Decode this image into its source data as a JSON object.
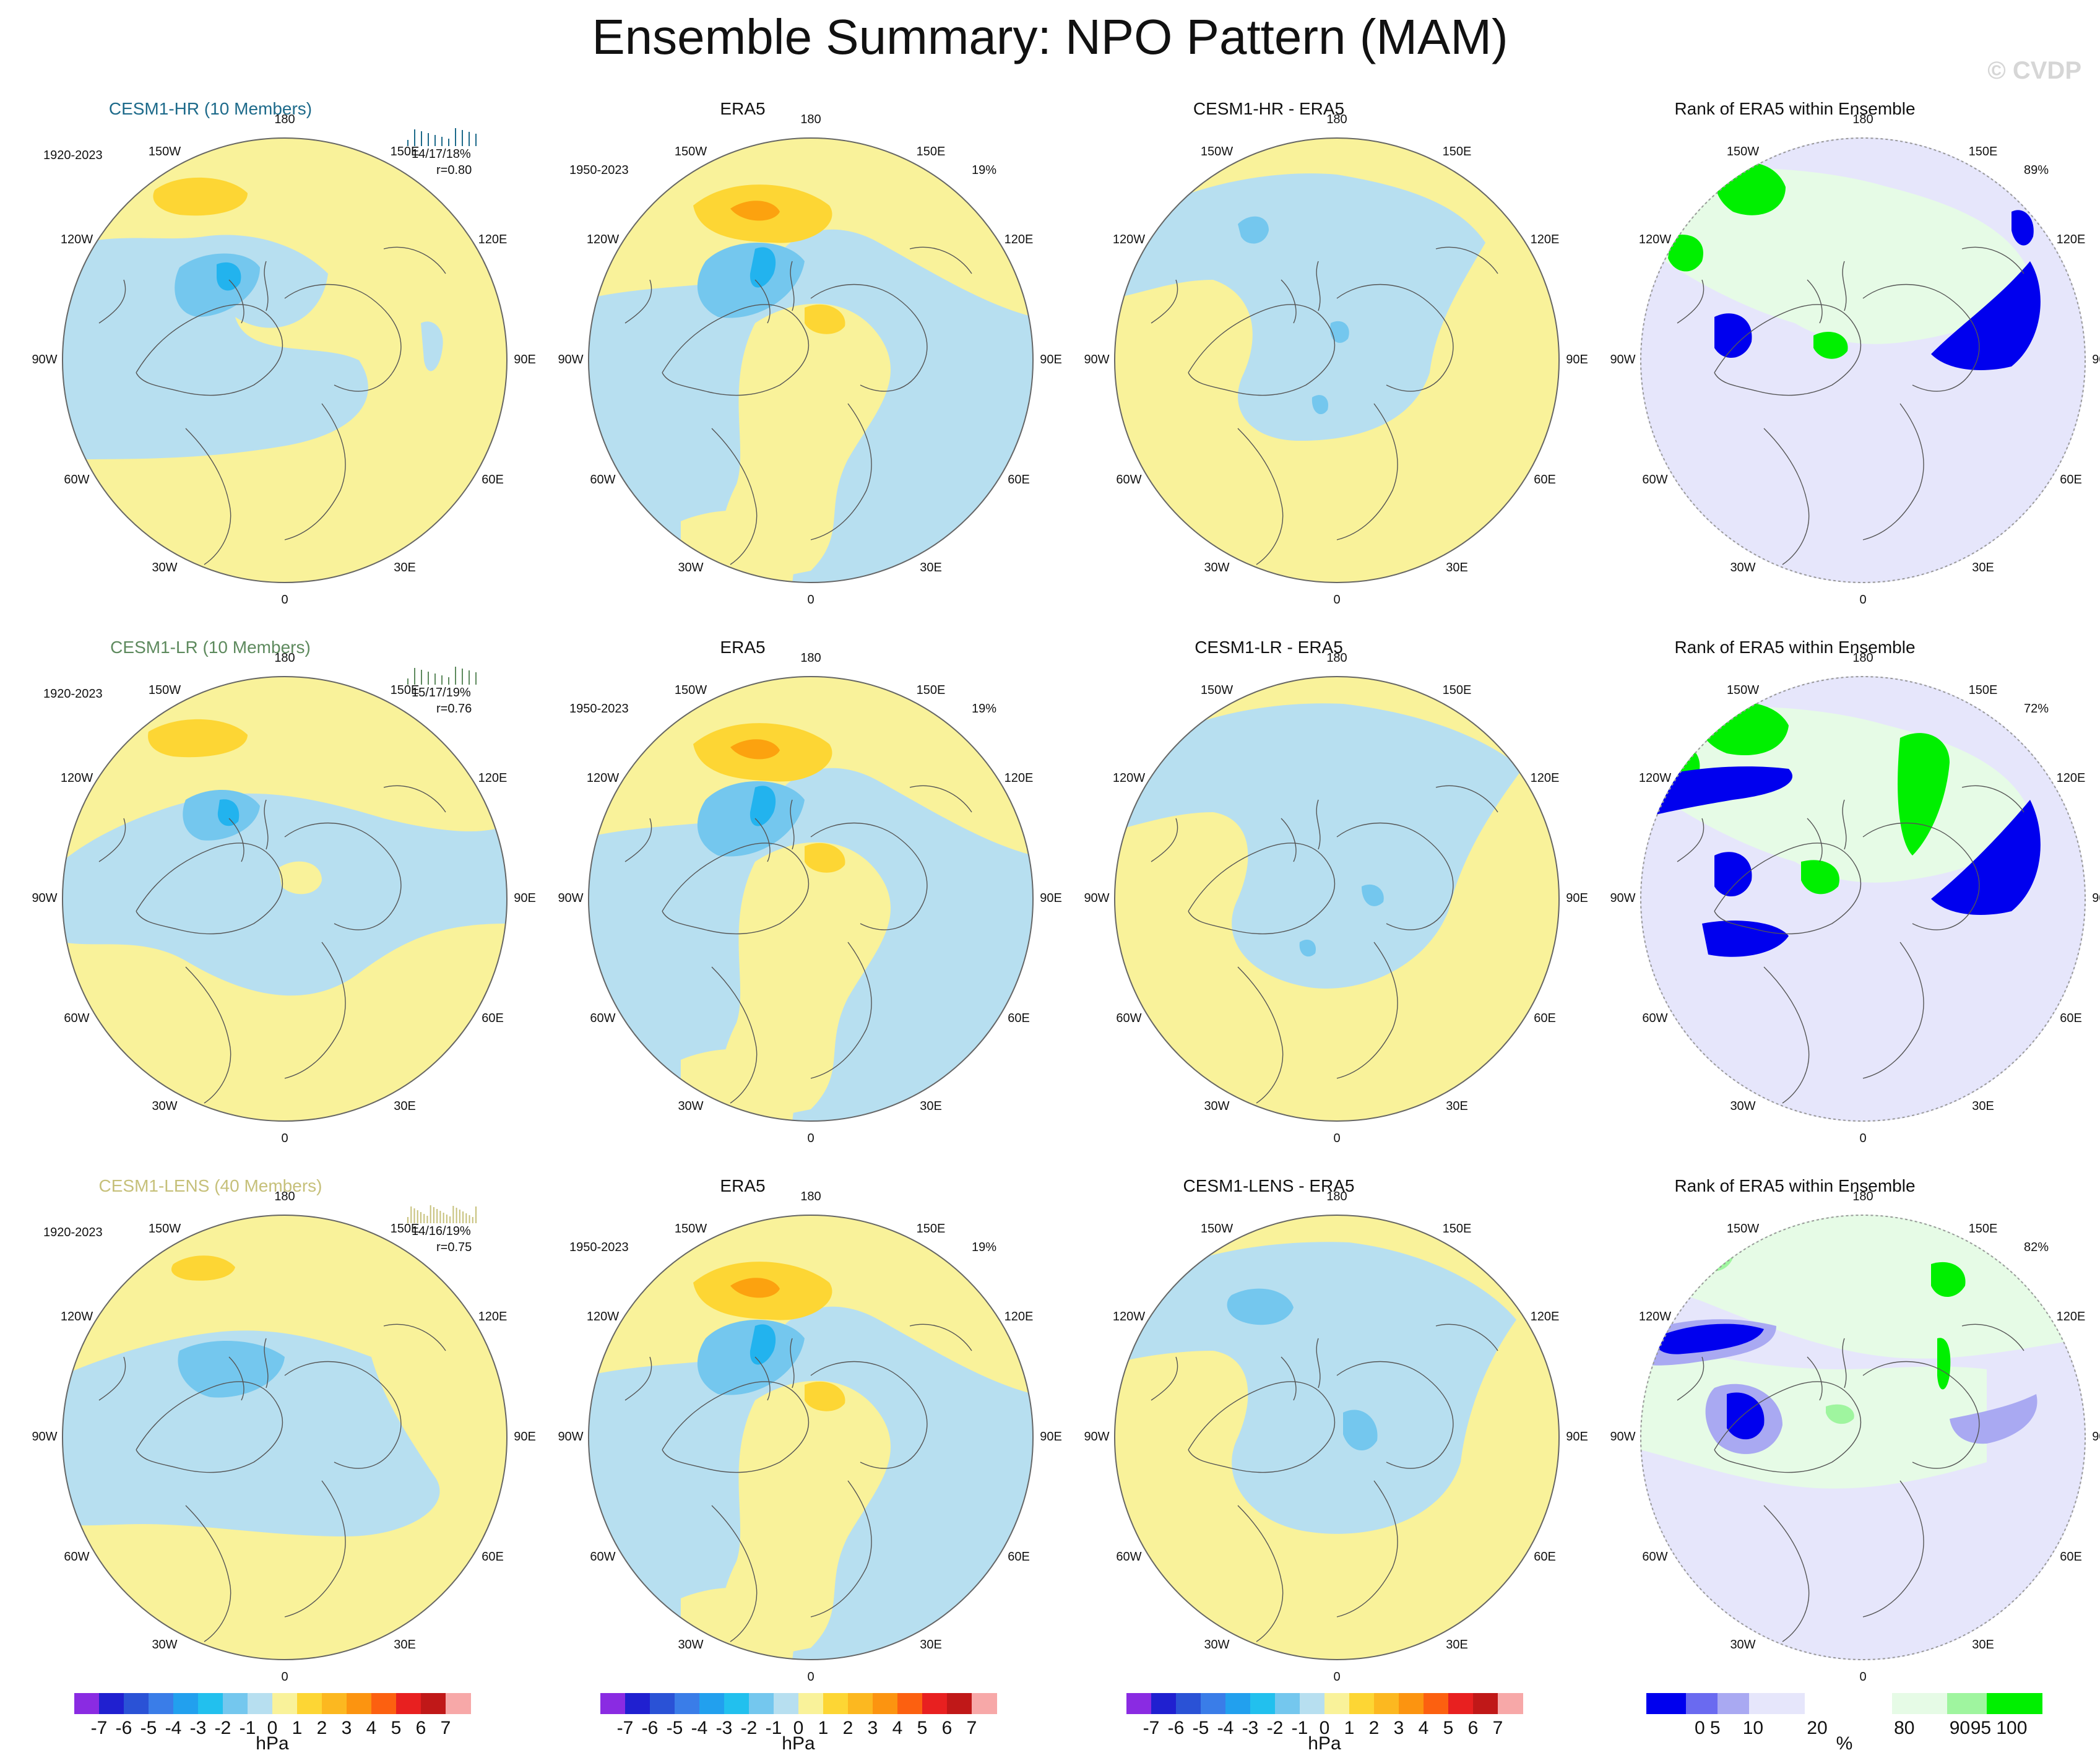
{
  "title": "Ensemble Summary: NPO Pattern (MAM)",
  "watermark": "© CVDP",
  "lon_labels": [
    "180",
    "150E",
    "120E",
    "90E",
    "60E",
    "30E",
    "0",
    "30W",
    "60W",
    "90W",
    "120W",
    "150W"
  ],
  "colors": {
    "pos_light": "#f9f29a",
    "pos_mid": "#fdd634",
    "pos_strong": "#fca20f",
    "neg_light": "#b7dff0",
    "neg_mid": "#74c7ee",
    "neg_strong": "#22b3ee",
    "rank_low": "#0000ee",
    "rank_lowmid": "#a9a9f2",
    "rank_lowlight": "#e6e6fb",
    "rank_high": "#00f000",
    "rank_highmid": "#9ff59f",
    "rank_highlight": "#e6fbe6",
    "model_hr": "#1d6a8a",
    "model_lr": "#5e8a5e",
    "model_lens": "#c6c07a"
  },
  "rows": [
    {
      "model": {
        "title": "CESM1-HR (10 Members)",
        "years": "1920-2023",
        "stats": "14/17/18%",
        "corr": "r=0.80"
      },
      "obs": {
        "title": "ERA5",
        "years": "1950-2023",
        "pct": "19%"
      },
      "diff": {
        "title": "CESM1-HR - ERA5"
      },
      "rank": {
        "title": "Rank of ERA5 within Ensemble",
        "pct": "89%"
      }
    },
    {
      "model": {
        "title": "CESM1-LR (10 Members)",
        "years": "1920-2023",
        "stats": "15/17/19%",
        "corr": "r=0.76"
      },
      "obs": {
        "title": "ERA5",
        "years": "1950-2023",
        "pct": "19%"
      },
      "diff": {
        "title": "CESM1-LR - ERA5"
      },
      "rank": {
        "title": "Rank of ERA5 within Ensemble",
        "pct": "72%"
      }
    },
    {
      "model": {
        "title": "CESM1-LENS (40 Members)",
        "years": "1920-2023",
        "stats": "14/16/19%",
        "corr": "r=0.75"
      },
      "obs": {
        "title": "ERA5",
        "years": "1950-2023",
        "pct": "19%"
      },
      "diff": {
        "title": "CESM1-LENS - ERA5"
      },
      "rank": {
        "title": "Rank of ERA5 within Ensemble",
        "pct": "82%"
      }
    }
  ],
  "hpa_colorbar": {
    "labels": [
      "-7",
      "-6",
      "-5",
      "-4",
      "-3",
      "-2",
      "-1",
      "0",
      "1",
      "2",
      "3",
      "4",
      "5",
      "6",
      "7"
    ],
    "colors": [
      "#8a2be2",
      "#2020d0",
      "#2a52d6",
      "#3a7de8",
      "#22a0ee",
      "#22c0ee",
      "#74c7ee",
      "#b7dff0",
      "#f9f29a",
      "#fdd634",
      "#fcb820",
      "#fc9410",
      "#fc6010",
      "#e82020",
      "#c01818",
      "#f7a8a8"
    ],
    "unit": "hPa"
  },
  "rank_colorbar": {
    "labels": [
      "0",
      "5",
      "10",
      "20",
      "80",
      "90",
      "95",
      "100"
    ],
    "colors": [
      "#0000ee",
      "#6a6af0",
      "#a9a9f2",
      "#e6e6fb",
      "#ffffff",
      "#e6fbe6",
      "#9ff59f",
      "#00f000"
    ],
    "unit": "%"
  }
}
